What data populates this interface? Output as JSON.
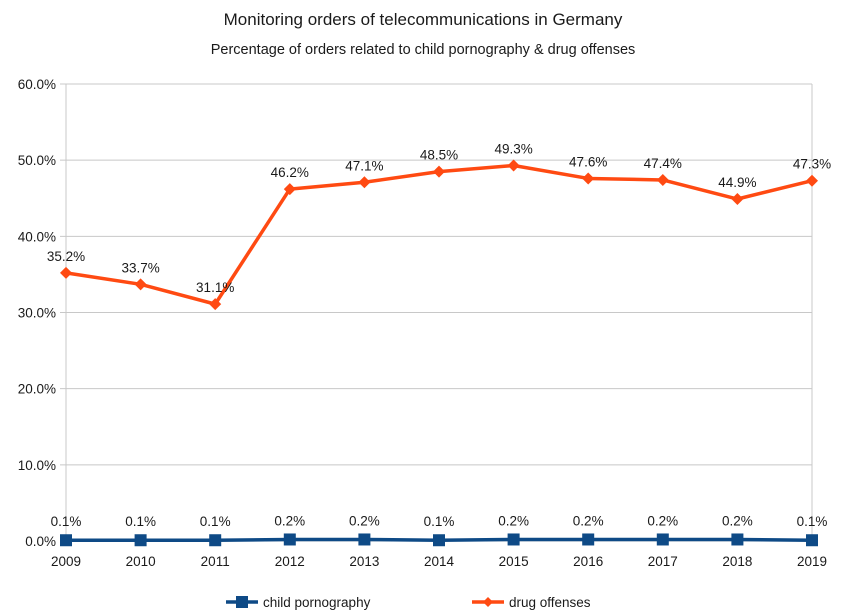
{
  "chart_data": {
    "type": "line",
    "title": "Monitoring orders of telecommunications in Germany",
    "subtitle": "Percentage of orders related to child pornography & drug offenses",
    "xlabel": "",
    "ylabel": "",
    "categories": [
      "2009",
      "2010",
      "2011",
      "2012",
      "2013",
      "2014",
      "2015",
      "2016",
      "2017",
      "2018",
      "2019"
    ],
    "ylim": [
      0,
      60
    ],
    "yticks": [
      0,
      10,
      20,
      30,
      40,
      50,
      60
    ],
    "ytick_labels": [
      "0.0%",
      "10.0%",
      "20.0%",
      "30.0%",
      "40.0%",
      "50.0%",
      "60.0%"
    ],
    "grid": "horizontal",
    "legend_position": "bottom",
    "series": [
      {
        "name": "child pornography",
        "color": "#0e4a86",
        "marker": "square",
        "values": [
          0.1,
          0.1,
          0.1,
          0.2,
          0.2,
          0.1,
          0.2,
          0.2,
          0.2,
          0.2,
          0.1
        ],
        "labels": [
          "0.1%",
          "0.1%",
          "0.1%",
          "0.2%",
          "0.2%",
          "0.1%",
          "0.2%",
          "0.2%",
          "0.2%",
          "0.2%",
          "0.1%"
        ]
      },
      {
        "name": "drug offenses",
        "color": "#ff4a12",
        "marker": "diamond",
        "values": [
          35.2,
          33.7,
          31.1,
          46.2,
          47.1,
          48.5,
          49.3,
          47.6,
          47.4,
          44.9,
          47.3
        ],
        "labels": [
          "35.2%",
          "33.7%",
          "31.1%",
          "46.2%",
          "47.1%",
          "48.5%",
          "49.3%",
          "47.6%",
          "47.4%",
          "44.9%",
          "47.3%"
        ]
      }
    ]
  }
}
